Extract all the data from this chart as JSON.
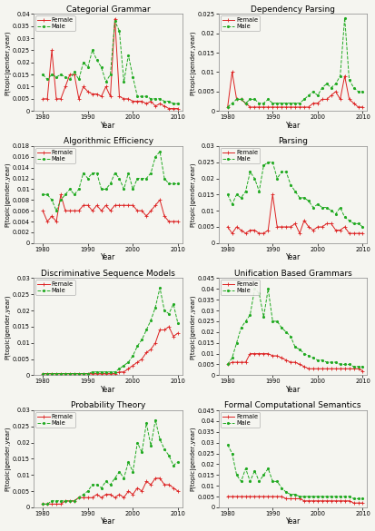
{
  "plots": [
    {
      "title": "Categorial Grammar",
      "ylim": [
        0,
        0.04
      ],
      "yticks": [
        0,
        0.005,
        0.01,
        0.015,
        0.02,
        0.025,
        0.03,
        0.035,
        0.04
      ],
      "female": [
        0.005,
        0.005,
        0.025,
        0.005,
        0.005,
        0.01,
        0.015,
        0.015,
        0.005,
        0.01,
        0.008,
        0.007,
        0.007,
        0.006,
        0.01,
        0.006,
        0.038,
        0.006,
        0.005,
        0.005,
        0.004,
        0.004,
        0.004,
        0.003,
        0.004,
        0.002,
        0.003,
        0.002,
        0.001,
        0.001,
        0.001
      ],
      "male": [
        0.015,
        0.013,
        0.015,
        0.014,
        0.015,
        0.014,
        0.013,
        0.016,
        0.013,
        0.02,
        0.018,
        0.025,
        0.021,
        0.018,
        0.012,
        0.015,
        0.037,
        0.033,
        0.012,
        0.023,
        0.014,
        0.006,
        0.006,
        0.006,
        0.005,
        0.005,
        0.005,
        0.004,
        0.004,
        0.003,
        0.003
      ]
    },
    {
      "title": "Dependency Parsing",
      "ylim": [
        0,
        0.025
      ],
      "yticks": [
        0,
        0.005,
        0.01,
        0.015,
        0.02,
        0.025
      ],
      "female": [
        0.001,
        0.01,
        0.003,
        0.003,
        0.002,
        0.001,
        0.001,
        0.001,
        0.001,
        0.001,
        0.001,
        0.001,
        0.001,
        0.001,
        0.001,
        0.001,
        0.001,
        0.001,
        0.001,
        0.002,
        0.002,
        0.003,
        0.003,
        0.004,
        0.005,
        0.003,
        0.009,
        0.003,
        0.002,
        0.001,
        0.001
      ],
      "male": [
        0.001,
        0.002,
        0.003,
        0.003,
        0.002,
        0.003,
        0.003,
        0.002,
        0.002,
        0.003,
        0.002,
        0.002,
        0.002,
        0.002,
        0.002,
        0.002,
        0.002,
        0.003,
        0.004,
        0.005,
        0.004,
        0.006,
        0.007,
        0.006,
        0.007,
        0.009,
        0.024,
        0.008,
        0.006,
        0.005,
        0.005
      ]
    },
    {
      "title": "Algorithmic Efficiency",
      "ylim": [
        0,
        0.018
      ],
      "yticks": [
        0,
        0.002,
        0.004,
        0.006,
        0.008,
        0.01,
        0.012,
        0.014,
        0.016,
        0.018
      ],
      "female": [
        0.006,
        0.004,
        0.005,
        0.004,
        0.009,
        0.006,
        0.006,
        0.006,
        0.006,
        0.007,
        0.007,
        0.006,
        0.007,
        0.006,
        0.007,
        0.006,
        0.007,
        0.007,
        0.007,
        0.007,
        0.007,
        0.006,
        0.006,
        0.005,
        0.006,
        0.007,
        0.008,
        0.005,
        0.004,
        0.004,
        0.004
      ],
      "male": [
        0.009,
        0.009,
        0.008,
        0.006,
        0.008,
        0.009,
        0.01,
        0.009,
        0.01,
        0.013,
        0.012,
        0.013,
        0.013,
        0.01,
        0.01,
        0.011,
        0.013,
        0.012,
        0.01,
        0.013,
        0.01,
        0.012,
        0.012,
        0.012,
        0.013,
        0.016,
        0.017,
        0.012,
        0.011,
        0.011,
        0.011
      ]
    },
    {
      "title": "Parsing",
      "ylim": [
        0,
        0.03
      ],
      "yticks": [
        0,
        0.005,
        0.01,
        0.015,
        0.02,
        0.025,
        0.03
      ],
      "female": [
        0.005,
        0.003,
        0.005,
        0.004,
        0.003,
        0.004,
        0.004,
        0.003,
        0.003,
        0.004,
        0.015,
        0.005,
        0.005,
        0.005,
        0.005,
        0.006,
        0.003,
        0.007,
        0.005,
        0.004,
        0.005,
        0.005,
        0.006,
        0.006,
        0.004,
        0.004,
        0.005,
        0.003,
        0.003,
        0.003,
        0.003
      ],
      "male": [
        0.015,
        0.012,
        0.015,
        0.014,
        0.016,
        0.022,
        0.02,
        0.016,
        0.024,
        0.025,
        0.025,
        0.02,
        0.022,
        0.022,
        0.018,
        0.016,
        0.014,
        0.014,
        0.013,
        0.011,
        0.012,
        0.011,
        0.011,
        0.01,
        0.009,
        0.011,
        0.008,
        0.007,
        0.006,
        0.006,
        0.005
      ]
    },
    {
      "title": "Discriminative Sequence Models",
      "ylim": [
        0,
        0.03
      ],
      "yticks": [
        0,
        0.005,
        0.01,
        0.015,
        0.02,
        0.025,
        0.03
      ],
      "female": [
        0.0005,
        0.0005,
        0.0005,
        0.0005,
        0.0005,
        0.0005,
        0.0005,
        0.0005,
        0.0005,
        0.0005,
        0.0005,
        0.0005,
        0.0005,
        0.0005,
        0.0005,
        0.0005,
        0.0005,
        0.001,
        0.001,
        0.002,
        0.003,
        0.004,
        0.005,
        0.007,
        0.008,
        0.01,
        0.014,
        0.014,
        0.015,
        0.012,
        0.013
      ],
      "male": [
        0.0005,
        0.0005,
        0.0005,
        0.0005,
        0.0005,
        0.0005,
        0.0005,
        0.0005,
        0.0005,
        0.0005,
        0.0005,
        0.001,
        0.001,
        0.001,
        0.001,
        0.001,
        0.001,
        0.002,
        0.003,
        0.004,
        0.006,
        0.009,
        0.011,
        0.014,
        0.017,
        0.021,
        0.027,
        0.02,
        0.019,
        0.022,
        0.016
      ]
    },
    {
      "title": "Unification Based Grammars",
      "ylim": [
        0,
        0.045
      ],
      "yticks": [
        0,
        0.005,
        0.01,
        0.015,
        0.02,
        0.025,
        0.03,
        0.035,
        0.04,
        0.045
      ],
      "female": [
        0.005,
        0.006,
        0.006,
        0.006,
        0.006,
        0.01,
        0.01,
        0.01,
        0.01,
        0.01,
        0.009,
        0.009,
        0.008,
        0.007,
        0.006,
        0.006,
        0.005,
        0.004,
        0.003,
        0.003,
        0.003,
        0.003,
        0.003,
        0.003,
        0.003,
        0.003,
        0.003,
        0.003,
        0.003,
        0.003,
        0.002
      ],
      "male": [
        0.005,
        0.008,
        0.015,
        0.022,
        0.025,
        0.028,
        0.04,
        0.038,
        0.027,
        0.04,
        0.025,
        0.025,
        0.022,
        0.02,
        0.018,
        0.013,
        0.012,
        0.01,
        0.009,
        0.008,
        0.007,
        0.007,
        0.006,
        0.006,
        0.006,
        0.005,
        0.005,
        0.005,
        0.004,
        0.004,
        0.004
      ]
    },
    {
      "title": "Probability Theory",
      "ylim": [
        0,
        0.03
      ],
      "yticks": [
        0,
        0.005,
        0.01,
        0.015,
        0.02,
        0.025,
        0.03
      ],
      "female": [
        0.001,
        0.001,
        0.001,
        0.001,
        0.001,
        0.002,
        0.002,
        0.002,
        0.003,
        0.003,
        0.003,
        0.003,
        0.004,
        0.003,
        0.004,
        0.004,
        0.003,
        0.004,
        0.003,
        0.005,
        0.004,
        0.006,
        0.005,
        0.008,
        0.007,
        0.009,
        0.009,
        0.007,
        0.007,
        0.006,
        0.005
      ],
      "male": [
        0.001,
        0.001,
        0.002,
        0.002,
        0.002,
        0.002,
        0.002,
        0.002,
        0.003,
        0.004,
        0.005,
        0.007,
        0.007,
        0.006,
        0.008,
        0.007,
        0.009,
        0.011,
        0.009,
        0.014,
        0.011,
        0.02,
        0.017,
        0.026,
        0.019,
        0.027,
        0.021,
        0.018,
        0.016,
        0.013,
        0.014
      ]
    },
    {
      "title": "Formal Computational Semantics",
      "ylim": [
        0,
        0.045
      ],
      "yticks": [
        0,
        0.005,
        0.01,
        0.015,
        0.02,
        0.025,
        0.03,
        0.035,
        0.04,
        0.045
      ],
      "female": [
        0.005,
        0.005,
        0.005,
        0.005,
        0.005,
        0.005,
        0.005,
        0.005,
        0.005,
        0.005,
        0.005,
        0.005,
        0.005,
        0.004,
        0.004,
        0.004,
        0.004,
        0.003,
        0.003,
        0.003,
        0.003,
        0.003,
        0.003,
        0.003,
        0.003,
        0.003,
        0.003,
        0.003,
        0.002,
        0.002,
        0.002
      ],
      "male": [
        0.029,
        0.025,
        0.015,
        0.012,
        0.018,
        0.012,
        0.017,
        0.012,
        0.015,
        0.018,
        0.012,
        0.012,
        0.009,
        0.007,
        0.006,
        0.006,
        0.005,
        0.005,
        0.005,
        0.005,
        0.005,
        0.005,
        0.005,
        0.005,
        0.005,
        0.005,
        0.005,
        0.005,
        0.004,
        0.004,
        0.004
      ]
    }
  ],
  "years": [
    1980,
    1981,
    1982,
    1983,
    1984,
    1985,
    1986,
    1987,
    1988,
    1989,
    1990,
    1991,
    1992,
    1993,
    1994,
    1995,
    1996,
    1997,
    1998,
    1999,
    2000,
    2001,
    2002,
    2003,
    2004,
    2005,
    2006,
    2007,
    2008,
    2009,
    2010
  ],
  "female_color": "#dd2222",
  "male_color": "#22aa22",
  "xlabel": "Year",
  "ylabel": "P(topic|gender,year)",
  "bg_color": "#f5f5f0"
}
